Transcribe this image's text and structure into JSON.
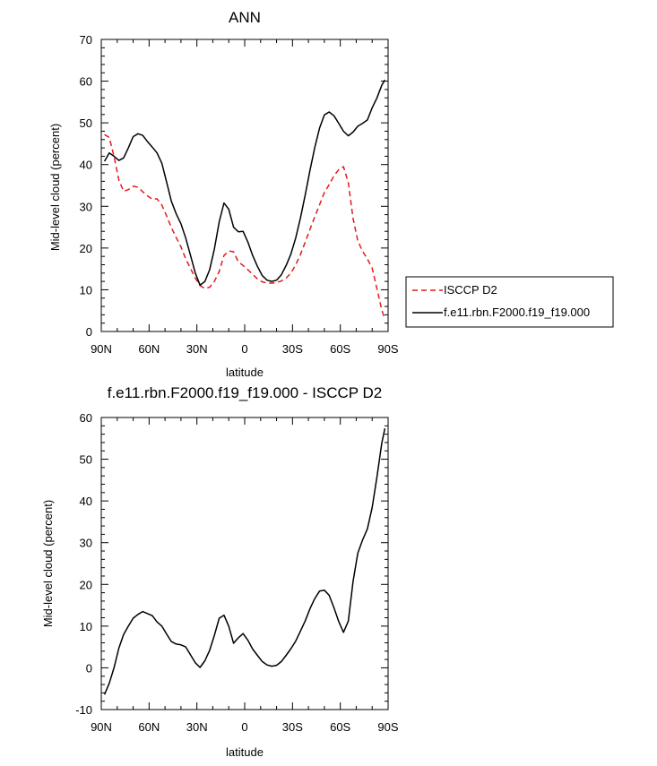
{
  "chart_data": [
    {
      "type": "line",
      "title": "ANN",
      "xlabel": "latitude",
      "ylabel": "Mid-level cloud (percent)",
      "xlim": [
        90,
        -90
      ],
      "ylim": [
        0,
        70
      ],
      "x_ticks": [
        90,
        60,
        30,
        0,
        -30,
        -60,
        -90
      ],
      "x_tick_labels": [
        "90N",
        "60N",
        "30N",
        "0",
        "30S",
        "60S",
        "90S"
      ],
      "y_ticks": [
        0,
        10,
        20,
        30,
        40,
        50,
        60,
        70
      ],
      "y_tick_labels": [
        "0",
        "10",
        "20",
        "30",
        "40",
        "50",
        "60",
        "70"
      ],
      "legend_position": "right",
      "series": [
        {
          "name": "ISCCP D2",
          "color": "#e41a1c",
          "dash": "dashed",
          "x": [
            88,
            85,
            82,
            79,
            76,
            73,
            70,
            67,
            64,
            61,
            58,
            55,
            52,
            49,
            46,
            43,
            40,
            37,
            34,
            31,
            28,
            25,
            22,
            19,
            16,
            13,
            10,
            7,
            4,
            1,
            -2,
            -5,
            -8,
            -11,
            -14,
            -17,
            -20,
            -23,
            -26,
            -29,
            -32,
            -35,
            -38,
            -41,
            -44,
            -47,
            -50,
            -53,
            -56,
            -59,
            -62,
            -65,
            -68,
            -71,
            -74,
            -77,
            -80,
            -83,
            -86,
            -88
          ],
          "y": [
            47.2,
            46.5,
            42.0,
            36.3,
            33.6,
            34.0,
            34.8,
            34.6,
            33.5,
            32.5,
            31.7,
            31.8,
            30.3,
            27.7,
            24.9,
            22.5,
            20.3,
            17.4,
            15.1,
            12.8,
            11.0,
            10.3,
            10.6,
            12.0,
            14.4,
            18.2,
            19.3,
            19.1,
            16.7,
            15.8,
            14.8,
            13.7,
            12.6,
            11.9,
            11.6,
            11.6,
            11.7,
            12.1,
            12.8,
            14.0,
            16.0,
            18.4,
            21.5,
            24.5,
            27.5,
            30.4,
            33.3,
            35.2,
            37.3,
            38.8,
            39.5,
            35.7,
            27.1,
            21.7,
            19.2,
            17.4,
            15.2,
            10.2,
            5.2,
            2.9
          ]
        },
        {
          "name": "f.e11.rbn.F2000.f19_f19.000",
          "color": "#000000",
          "dash": "solid",
          "x": [
            88,
            85,
            82,
            79,
            76,
            73,
            70,
            67,
            64,
            61,
            58,
            55,
            52,
            49,
            46,
            43,
            40,
            37,
            34,
            31,
            28,
            25,
            22,
            19,
            16,
            13,
            10,
            7,
            4,
            1,
            -2,
            -5,
            -8,
            -11,
            -14,
            -17,
            -20,
            -23,
            -26,
            -29,
            -32,
            -35,
            -38,
            -41,
            -44,
            -47,
            -50,
            -53,
            -56,
            -59,
            -62,
            -65,
            -68,
            -71,
            -74,
            -77,
            -80,
            -83,
            -86,
            -88
          ],
          "y": [
            40.8,
            42.8,
            42.0,
            41.0,
            41.6,
            44.0,
            46.7,
            47.4,
            47.0,
            45.5,
            44.2,
            42.8,
            40.3,
            35.8,
            31.2,
            28.2,
            25.8,
            22.4,
            18.2,
            14.0,
            11.1,
            12.0,
            14.8,
            19.8,
            26.3,
            30.8,
            29.3,
            25.0,
            23.9,
            24.0,
            21.4,
            18.2,
            15.6,
            13.4,
            12.3,
            12.0,
            12.3,
            13.6,
            15.8,
            18.6,
            22.4,
            27.2,
            32.8,
            38.7,
            44.1,
            48.8,
            51.9,
            52.6,
            51.7,
            49.9,
            48.0,
            46.9,
            47.8,
            49.2,
            49.9,
            50.7,
            53.6,
            56.0,
            59.0,
            60.3
          ]
        }
      ]
    },
    {
      "type": "line",
      "title": "f.e11.rbn.F2000.f19_f19.000 - ISCCP D2",
      "xlabel": "latitude",
      "ylabel": "Mid-level cloud (percent)",
      "xlim": [
        90,
        -90
      ],
      "ylim": [
        -10,
        60
      ],
      "x_ticks": [
        90,
        60,
        30,
        0,
        -30,
        -60,
        -90
      ],
      "x_tick_labels": [
        "90N",
        "60N",
        "30N",
        "0",
        "30S",
        "60S",
        "90S"
      ],
      "y_ticks": [
        -10,
        0,
        10,
        20,
        30,
        40,
        50,
        60
      ],
      "y_tick_labels": [
        "-10",
        "0",
        "10",
        "20",
        "30",
        "40",
        "50",
        "60"
      ],
      "series": [
        {
          "color": "#000000",
          "dash": "solid",
          "x": [
            88,
            85,
            82,
            79,
            76,
            73,
            70,
            67,
            64,
            61,
            58,
            55,
            52,
            49,
            46,
            43,
            40,
            37,
            34,
            31,
            28,
            25,
            22,
            19,
            16,
            13,
            10,
            7,
            4,
            1,
            -2,
            -5,
            -8,
            -11,
            -14,
            -17,
            -20,
            -23,
            -26,
            -29,
            -32,
            -35,
            -38,
            -41,
            -44,
            -47,
            -50,
            -53,
            -56,
            -59,
            -62,
            -65,
            -68,
            -71,
            -74,
            -77,
            -80,
            -83,
            -86,
            -88
          ],
          "y": [
            -6.4,
            -3.7,
            0.0,
            4.7,
            8.0,
            10.0,
            11.9,
            12.8,
            13.5,
            13.0,
            12.5,
            11.0,
            10.0,
            8.1,
            6.3,
            5.7,
            5.5,
            5.0,
            3.1,
            1.2,
            0.1,
            1.7,
            4.2,
            7.8,
            11.9,
            12.6,
            10.0,
            5.9,
            7.2,
            8.2,
            6.6,
            4.5,
            3.0,
            1.5,
            0.7,
            0.4,
            0.6,
            1.5,
            3.0,
            4.6,
            6.4,
            8.8,
            11.3,
            14.2,
            16.6,
            18.4,
            18.6,
            17.4,
            14.4,
            11.1,
            8.5,
            11.2,
            20.7,
            27.5,
            30.7,
            33.3,
            38.4,
            45.8,
            53.8,
            57.4
          ]
        }
      ]
    }
  ]
}
